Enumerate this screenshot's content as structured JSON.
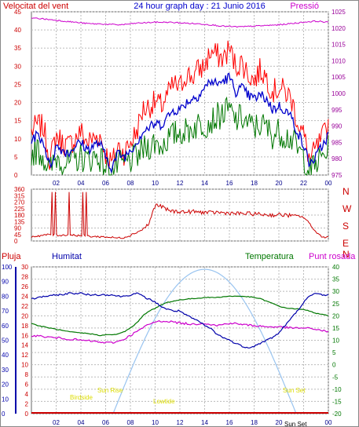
{
  "header": {
    "left_label": "Velocitat del vent",
    "center_label": "24 hour graph day : 21 Junio 2016",
    "right_label": "Pressió"
  },
  "labels": {
    "rain": "Pluja",
    "humidity": "Humitat",
    "temperature": "Temperatura",
    "dewpoint": "Punt rosada",
    "compass": [
      "N",
      "W",
      "S",
      "E",
      "N"
    ],
    "sun_events": {
      "birdside": "Birdside",
      "sunrise": "Sun Rise",
      "lowtide": "Lowtide",
      "sunset": "Sun Set",
      "sunset_small": "Sun Set"
    }
  },
  "colors": {
    "wind_gust": "#ff0000",
    "wind_avg": "#0000cc",
    "wind_low": "#007700",
    "pressure": "#cc00cc",
    "direction": "#cc0000",
    "rain": "#cc0000",
    "humidity": "#0000aa",
    "temperature": "#007700",
    "dewpoint": "#cc00cc",
    "solar": "#99c4f0",
    "sun_label": "#dddd00",
    "grid": "#bbbbbb",
    "axis_left": "#cc0000",
    "axis_right": "#990099",
    "axis_hum": "#0000aa",
    "axis_temp": "#007700"
  },
  "chart_data": [
    {
      "type": "line",
      "name": "wind-pressure",
      "x_ticks": [
        "02",
        "04",
        "06",
        "08",
        "10",
        "12",
        "14",
        "16",
        "18",
        "20",
        "22",
        "00"
      ],
      "ylim_left": [
        0,
        45
      ],
      "yticks_left": [
        0,
        5,
        10,
        15,
        20,
        25,
        30,
        35,
        40,
        45
      ],
      "ylim_right": [
        975,
        1025
      ],
      "yticks_right": [
        975,
        980,
        985,
        990,
        995,
        1000,
        1005,
        1010,
        1015,
        1020,
        1025
      ],
      "x_hours": [
        0,
        0.5,
        1,
        1.5,
        2,
        2.5,
        3,
        3.5,
        4,
        4.5,
        5,
        5.5,
        6,
        6.5,
        7,
        7.5,
        8,
        8.5,
        9,
        9.5,
        10,
        10.5,
        11,
        11.5,
        12,
        12.5,
        13,
        13.5,
        14,
        14.5,
        15,
        15.5,
        16,
        16.5,
        17,
        17.5,
        18,
        18.5,
        19,
        19.5,
        20,
        20.5,
        21,
        21.5,
        22,
        22.5,
        23,
        23.5,
        24
      ],
      "gust": [
        12,
        14,
        13,
        4,
        11,
        9,
        8,
        10,
        12,
        9,
        10,
        11,
        6,
        3,
        8,
        6,
        9,
        12,
        18,
        19,
        20,
        19,
        22,
        25,
        24,
        28,
        27,
        29,
        30,
        34,
        33,
        32,
        35,
        30,
        31,
        28,
        26,
        29,
        27,
        23,
        24,
        23,
        21,
        15,
        11,
        4,
        7,
        10,
        14
      ],
      "avg": [
        10,
        11,
        9,
        2,
        8,
        7,
        6,
        8,
        9,
        7,
        8,
        9,
        5,
        2,
        6,
        5,
        7,
        9,
        12,
        13,
        14,
        14,
        16,
        18,
        18,
        20,
        21,
        22,
        24,
        26,
        25,
        26,
        27,
        23,
        24,
        22,
        21,
        22,
        21,
        18,
        19,
        18,
        16,
        12,
        8,
        3,
        5,
        8,
        11
      ],
      "low": [
        6,
        7,
        5,
        1,
        5,
        4,
        3,
        4,
        5,
        4,
        5,
        5,
        2,
        1,
        3,
        3,
        4,
        5,
        7,
        8,
        9,
        8,
        10,
        11,
        12,
        12,
        13,
        14,
        14,
        15,
        16,
        17,
        18,
        15,
        16,
        14,
        13,
        14,
        13,
        11,
        12,
        11,
        10,
        7,
        5,
        1,
        3,
        5,
        7
      ],
      "pressure": [
        1023,
        1023,
        1022.8,
        1022.6,
        1022.4,
        1022.2,
        1022,
        1021.8,
        1021.6,
        1021.4,
        1021.3,
        1021.3,
        1021.2,
        1021.1,
        1021,
        1021.1,
        1021.3,
        1021.5,
        1021.6,
        1021.7,
        1021.8,
        1021.8,
        1021.8,
        1021.7,
        1021.6,
        1021.5,
        1021.4,
        1021.3,
        1021.2,
        1021,
        1020.8,
        1020.6,
        1020.5,
        1020.4,
        1020.4,
        1020.5,
        1020.6,
        1020.7,
        1020.8,
        1020.9,
        1021,
        1021.2,
        1021.4,
        1021.6,
        1021.8,
        1022,
        1022.1,
        1022,
        1021.7
      ]
    },
    {
      "type": "line",
      "name": "wind-direction",
      "y_ticks": [
        0,
        45,
        90,
        135,
        180,
        225,
        270,
        315,
        360
      ],
      "ylim": [
        0,
        360
      ],
      "x_hours": [
        0,
        0.5,
        1,
        1.5,
        2,
        2.5,
        3,
        3.5,
        4,
        4.5,
        5,
        5.5,
        6,
        6.5,
        7,
        7.5,
        8,
        8.5,
        9,
        9.5,
        10,
        10.5,
        11,
        11.5,
        12,
        12.5,
        13,
        13.5,
        14,
        14.5,
        15,
        15.5,
        16,
        16.5,
        17,
        17.5,
        18,
        18.5,
        19,
        19.5,
        20,
        20.5,
        21,
        21.5,
        22,
        22.5,
        23,
        23.5,
        24
      ],
      "values": [
        30,
        35,
        40,
        45,
        40,
        40,
        45,
        40,
        38,
        35,
        30,
        30,
        28,
        25,
        20,
        25,
        40,
        60,
        80,
        120,
        250,
        240,
        215,
        205,
        205,
        200,
        205,
        200,
        200,
        195,
        200,
        195,
        195,
        190,
        190,
        190,
        188,
        185,
        183,
        180,
        182,
        180,
        178,
        175,
        165,
        120,
        60,
        30,
        25
      ]
    },
    {
      "type": "line",
      "name": "temperature-humidity",
      "x_ticks": [
        "02",
        "04",
        "06",
        "08",
        "10",
        "12",
        "14",
        "16",
        "18",
        "20",
        "22",
        "00"
      ],
      "rain_ticks": [
        0,
        2,
        4,
        6,
        8,
        10,
        12,
        14,
        16,
        18,
        20,
        22,
        24,
        26,
        28,
        30
      ],
      "humidity_ticks": [
        0,
        10,
        20,
        30,
        40,
        50,
        60,
        70,
        80,
        90,
        100
      ],
      "temp_ticks": [
        -20,
        -15,
        -10,
        -5,
        0,
        5,
        10,
        15,
        20,
        25,
        30,
        35,
        40
      ],
      "x_hours": [
        0,
        0.5,
        1,
        1.5,
        2,
        2.5,
        3,
        3.5,
        4,
        4.5,
        5,
        5.5,
        6,
        6.5,
        7,
        7.5,
        8,
        8.5,
        9,
        9.5,
        10,
        10.5,
        11,
        11.5,
        12,
        12.5,
        13,
        13.5,
        14,
        14.5,
        15,
        15.5,
        16,
        16.5,
        17,
        17.5,
        18,
        18.5,
        19,
        19.5,
        20,
        20.5,
        21,
        21.5,
        22,
        22.5,
        23,
        23.5,
        24
      ],
      "humidity": [
        78,
        79,
        80,
        80,
        81,
        81,
        82,
        82,
        82,
        81,
        81,
        81,
        81,
        81,
        80,
        80,
        81,
        82,
        80,
        78,
        76,
        73,
        71,
        70,
        70,
        67,
        65,
        63,
        60,
        58,
        54,
        52,
        50,
        48,
        46,
        45,
        46,
        48,
        50,
        52,
        55,
        60,
        65,
        70,
        76,
        80,
        82,
        81,
        81
      ],
      "temperature": [
        17,
        16,
        15.5,
        15,
        14.5,
        14,
        13.5,
        13.2,
        13,
        12.8,
        12.5,
        12,
        12.2,
        12.3,
        12.5,
        13.5,
        15,
        17,
        20,
        22,
        23,
        24.5,
        25.5,
        26,
        26.5,
        26.8,
        27,
        27.2,
        27.5,
        27.5,
        27.5,
        27.8,
        28,
        28,
        28,
        27.8,
        27.5,
        27,
        26,
        25,
        24,
        23.2,
        23,
        22.8,
        22.5,
        22,
        21,
        20.5,
        20
      ],
      "dewpoint": [
        12,
        11.8,
        11.5,
        11.2,
        11,
        10.8,
        10.5,
        10.3,
        10,
        9.8,
        9.6,
        9.2,
        9,
        9,
        9.5,
        10.5,
        12,
        13.5,
        15,
        16.5,
        17.5,
        17.8,
        17.8,
        17.5,
        17,
        16.8,
        16.5,
        16.8,
        17,
        16.5,
        16,
        16.5,
        17,
        16.8,
        16.5,
        16.2,
        16,
        15.8,
        15.5,
        15.5,
        15.5,
        15.3,
        15,
        15,
        15,
        14.8,
        14.5,
        14,
        13.5
      ],
      "solar_start_hour": 6.6,
      "solar_peak_hour": 14,
      "solar_end_hour": 21.4,
      "solar_peak_temp": 39,
      "rain": []
    }
  ]
}
